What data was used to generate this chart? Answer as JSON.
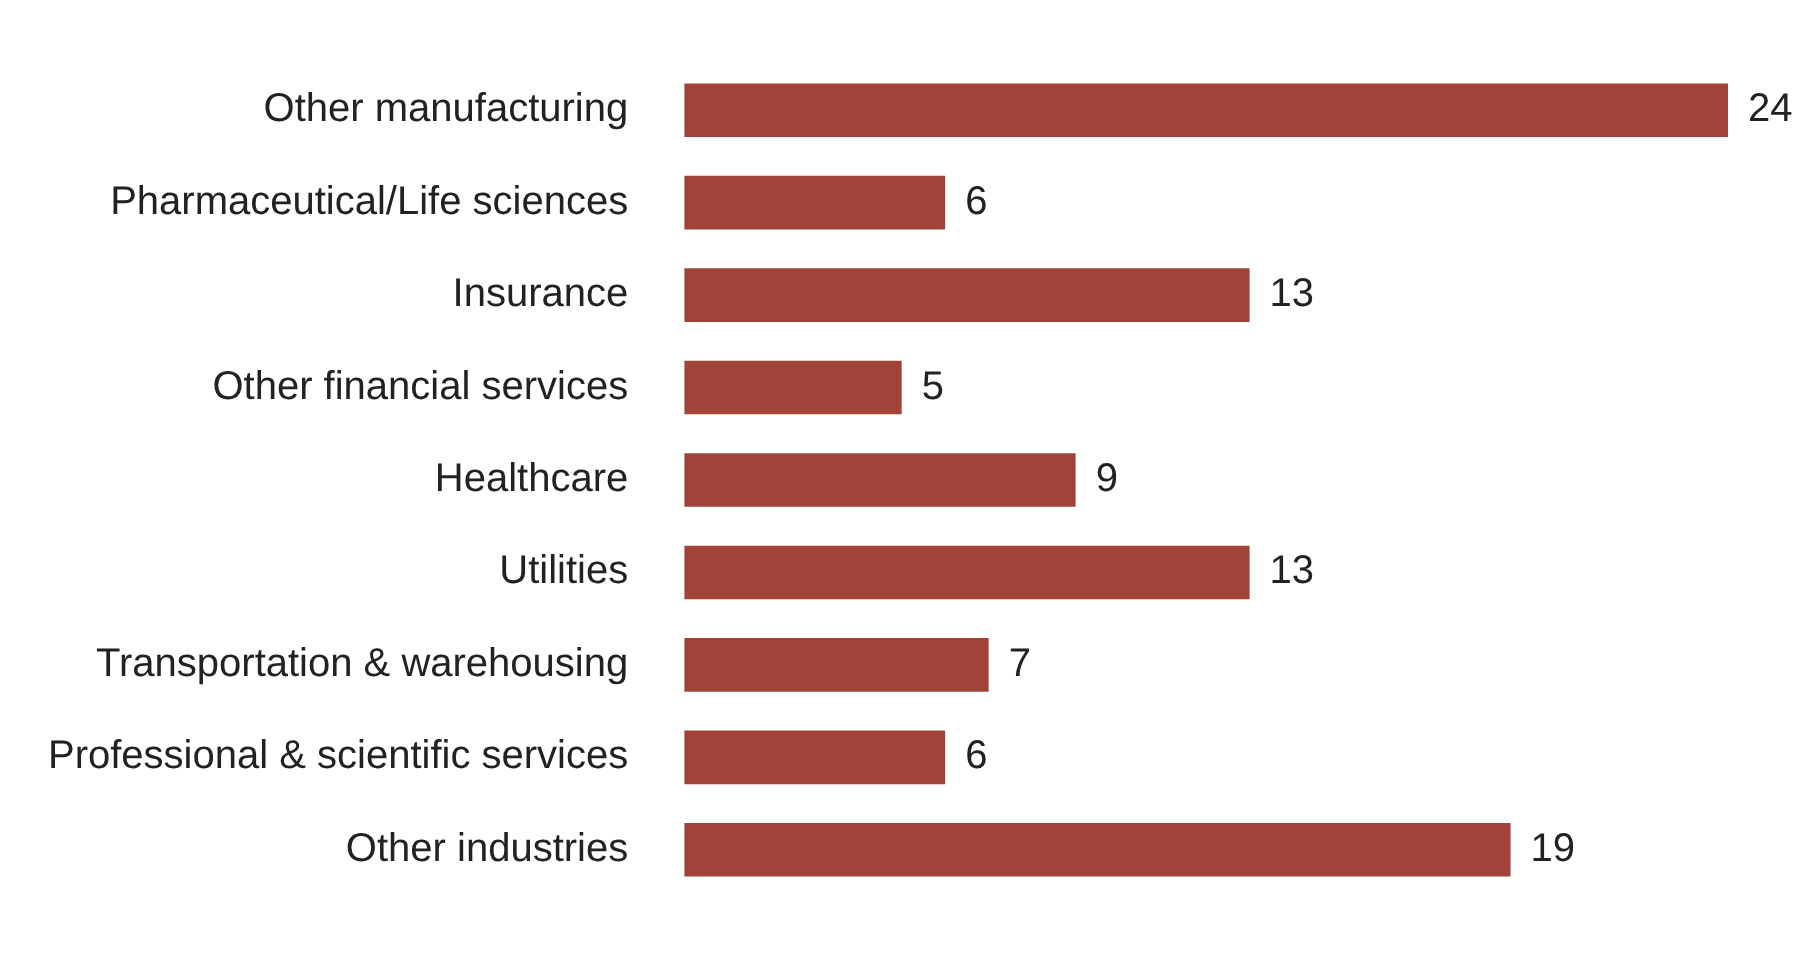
{
  "chart_data": {
    "type": "bar",
    "orientation": "horizontal",
    "categories": [
      "Other manufacturing",
      "Pharmaceutical/Life sciences",
      "Insurance",
      "Other financial services",
      "Healthcare",
      "Utilities",
      "Transportation & warehousing",
      "Professional & scientific services",
      "Other industries"
    ],
    "values": [
      24,
      6,
      13,
      5,
      9,
      13,
      7,
      6,
      19
    ],
    "color": "#a0443a",
    "data_labels": true
  }
}
